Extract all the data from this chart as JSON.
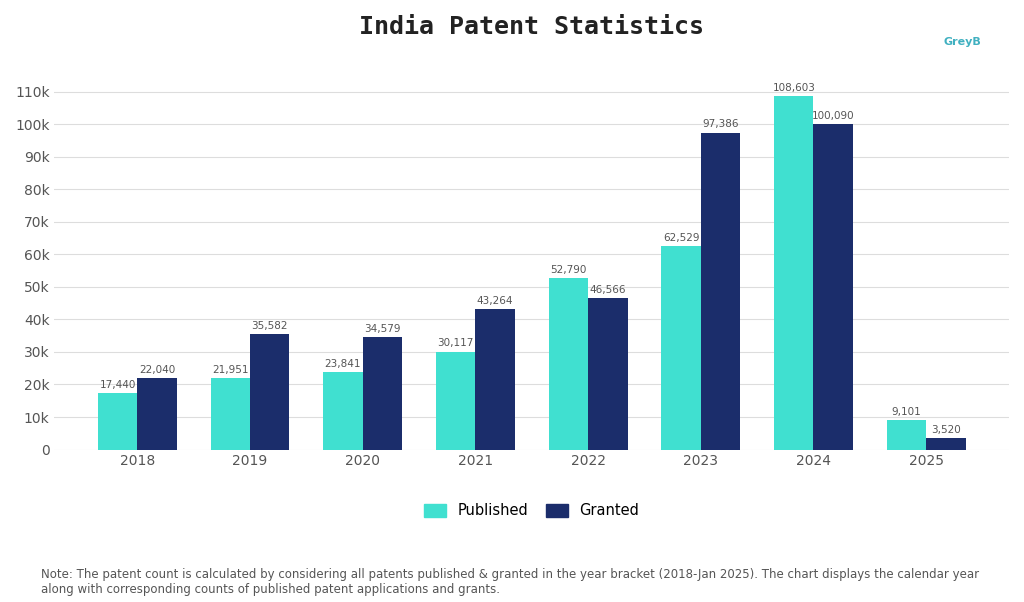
{
  "title": "India Patent Statistics",
  "categories": [
    "2018",
    "2019",
    "2020",
    "2021",
    "2022",
    "2023",
    "2024",
    "2025"
  ],
  "published": [
    17440,
    21951,
    23841,
    30117,
    52790,
    62529,
    108603,
    9101
  ],
  "granted": [
    22040,
    35582,
    34579,
    43264,
    46566,
    97386,
    100090,
    3520
  ],
  "published_labels": [
    "17,440",
    "21,951",
    "23,841",
    "30,117",
    "52,790",
    "62,529",
    "108,603",
    "9,101"
  ],
  "granted_labels": [
    "22,040",
    "35,582",
    "34,579",
    "43,264",
    "46,566",
    "97,386",
    "100,090",
    "3,520"
  ],
  "published_color": "#40E0D0",
  "granted_color": "#1B2D6B",
  "bar_width": 0.35,
  "ylim": [
    0,
    120000
  ],
  "yticks": [
    0,
    10000,
    20000,
    30000,
    40000,
    50000,
    60000,
    70000,
    80000,
    90000,
    100000,
    110000
  ],
  "ytick_labels": [
    "0",
    "10k",
    "20k",
    "30k",
    "40k",
    "50k",
    "60k",
    "70k",
    "80k",
    "90k",
    "100k",
    "110k"
  ],
  "legend_published": "Published",
  "legend_granted": "Granted",
  "note": "Note: The patent count is calculated by considering all patents published & granted in the year bracket (2018-Jan 2025). The chart displays the calendar year\nalong with corresponding counts of published patent applications and grants.",
  "background_color": "#ffffff",
  "title_fontsize": 18,
  "label_fontsize": 7.5,
  "tick_fontsize": 10,
  "note_fontsize": 8.5
}
